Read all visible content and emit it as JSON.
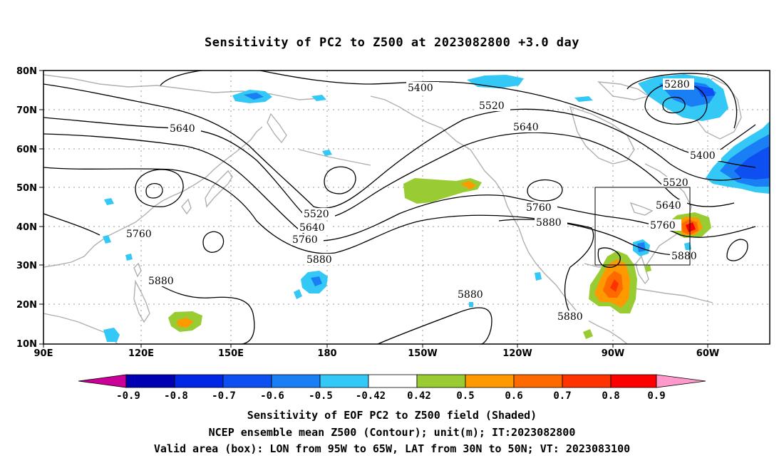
{
  "title": "Sensitivity of PC2 to Z500 at 2023082800 +3.0 day",
  "lat_labels": [
    "80N",
    "70N",
    "60N",
    "50N",
    "40N",
    "30N",
    "20N",
    "10N"
  ],
  "lon_labels": [
    "90E",
    "120E",
    "150E",
    "180",
    "150W",
    "120W",
    "90W",
    "60W"
  ],
  "contour_labels": [
    "5400",
    "5280",
    "5520",
    "5640",
    "5640",
    "5400",
    "5520",
    "5640",
    "5760",
    "5880",
    "5520",
    "5640",
    "5760",
    "5880",
    "5760",
    "5880",
    "5880",
    "5880",
    "5880",
    "5760"
  ],
  "colorbar": {
    "labels": [
      "-0.9",
      "-0.8",
      "-0.7",
      "-0.6",
      "-0.5",
      "-0.42",
      "0.42",
      "0.5",
      "0.6",
      "0.7",
      "0.8",
      "0.9"
    ],
    "colors": [
      "#cc0099",
      "#0000b3",
      "#0026e6",
      "#0d4ff0",
      "#1a7ff5",
      "#33c8f5",
      "#ffffff",
      "#99cc33",
      "#ff9900",
      "#ff6a00",
      "#ff3300",
      "#ff0000",
      "#ff99cc"
    ]
  },
  "box_region": {
    "lon_from": "95W",
    "lon_to": "65W",
    "lat_from": "30N",
    "lat_to": "50N"
  },
  "captions": {
    "line1": "Sensitivity of EOF PC2 to Z500 field (Shaded)",
    "line2": "NCEP ensemble mean Z500 (Contour); unit(m); IT:2023082800",
    "line3": "Valid area (box): LON from 95W to 65W, LAT from 30N to 50N; VT: 2023083100"
  }
}
